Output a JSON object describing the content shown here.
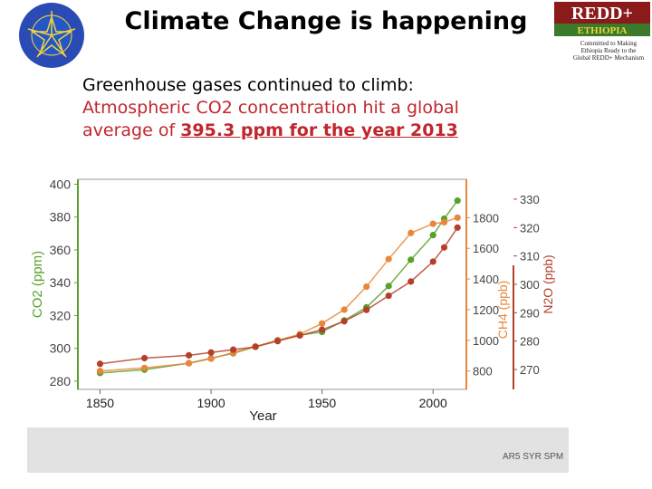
{
  "title": "Climate Change is happening",
  "text": {
    "line1": "Greenhouse gases continued to climb:",
    "line2": "Atmospheric CO2 concentration hit a global",
    "line3_prefix": "average of ",
    "line3_highlight": "395.3 ppm for the year 2013"
  },
  "logo_right": {
    "brand": "REDD+",
    "country": "ETHIOPIA",
    "tagline1": "Committed to Making",
    "tagline2": "Ethiopia Ready to the",
    "tagline3": "Global REDD+ Mechanism"
  },
  "source": "AR5 SYR SPM",
  "colors": {
    "co2": "#5aa02c",
    "ch4": "#e8873a",
    "n2o": "#b5402a",
    "title": "#000000",
    "highlight": "#c0272d"
  },
  "chart_data": {
    "type": "scatter",
    "xlabel": "Year",
    "xlim": [
      1840,
      2015
    ],
    "xticks": [
      1850,
      1900,
      1950,
      2000
    ],
    "xtick_labels": [
      "1850",
      "1900",
      "1950",
      "2000"
    ],
    "axes": [
      {
        "name": "co2",
        "label": "CO2 (ppm)",
        "side": "left",
        "ylim": [
          275,
          403
        ],
        "ticks": [
          280,
          300,
          320,
          340,
          360,
          380,
          400
        ]
      },
      {
        "name": "ch4",
        "label": "CH4 (ppb)",
        "side": "right",
        "ylim": [
          680,
          2050
        ],
        "ticks": [
          800,
          1000,
          1200,
          1400,
          1600,
          1800
        ]
      },
      {
        "name": "n2o",
        "label": "N2O (ppb)",
        "side": "right",
        "ylim": [
          263,
          337
        ],
        "ticks": [
          270,
          280,
          290,
          300,
          310,
          320,
          330
        ]
      }
    ],
    "series": [
      {
        "name": "CO2",
        "axis": "co2",
        "color": "#5aa02c",
        "x": [
          1850,
          1870,
          1890,
          1900,
          1910,
          1920,
          1930,
          1940,
          1950,
          1960,
          1970,
          1980,
          1990,
          2000,
          2005,
          2011
        ],
        "y": [
          285,
          287,
          291,
          294,
          297,
          301,
          305,
          308,
          310,
          317,
          325,
          338,
          354,
          369,
          379,
          390
        ]
      },
      {
        "name": "CH4",
        "axis": "ch4",
        "color": "#e8873a",
        "x": [
          1850,
          1870,
          1890,
          1900,
          1910,
          1920,
          1930,
          1940,
          1950,
          1960,
          1970,
          1980,
          1990,
          2000,
          2005,
          2011
        ],
        "y": [
          800,
          820,
          850,
          880,
          920,
          960,
          1000,
          1040,
          1110,
          1200,
          1350,
          1530,
          1700,
          1760,
          1770,
          1800
        ]
      },
      {
        "name": "N2O",
        "axis": "n2o",
        "color": "#b5402a",
        "x": [
          1850,
          1870,
          1890,
          1900,
          1910,
          1920,
          1930,
          1940,
          1950,
          1960,
          1970,
          1980,
          1990,
          2000,
          2005,
          2011
        ],
        "y": [
          272,
          274,
          275,
          276,
          277,
          278,
          280,
          282,
          284,
          287,
          291,
          296,
          301,
          308,
          313,
          320
        ]
      }
    ]
  }
}
